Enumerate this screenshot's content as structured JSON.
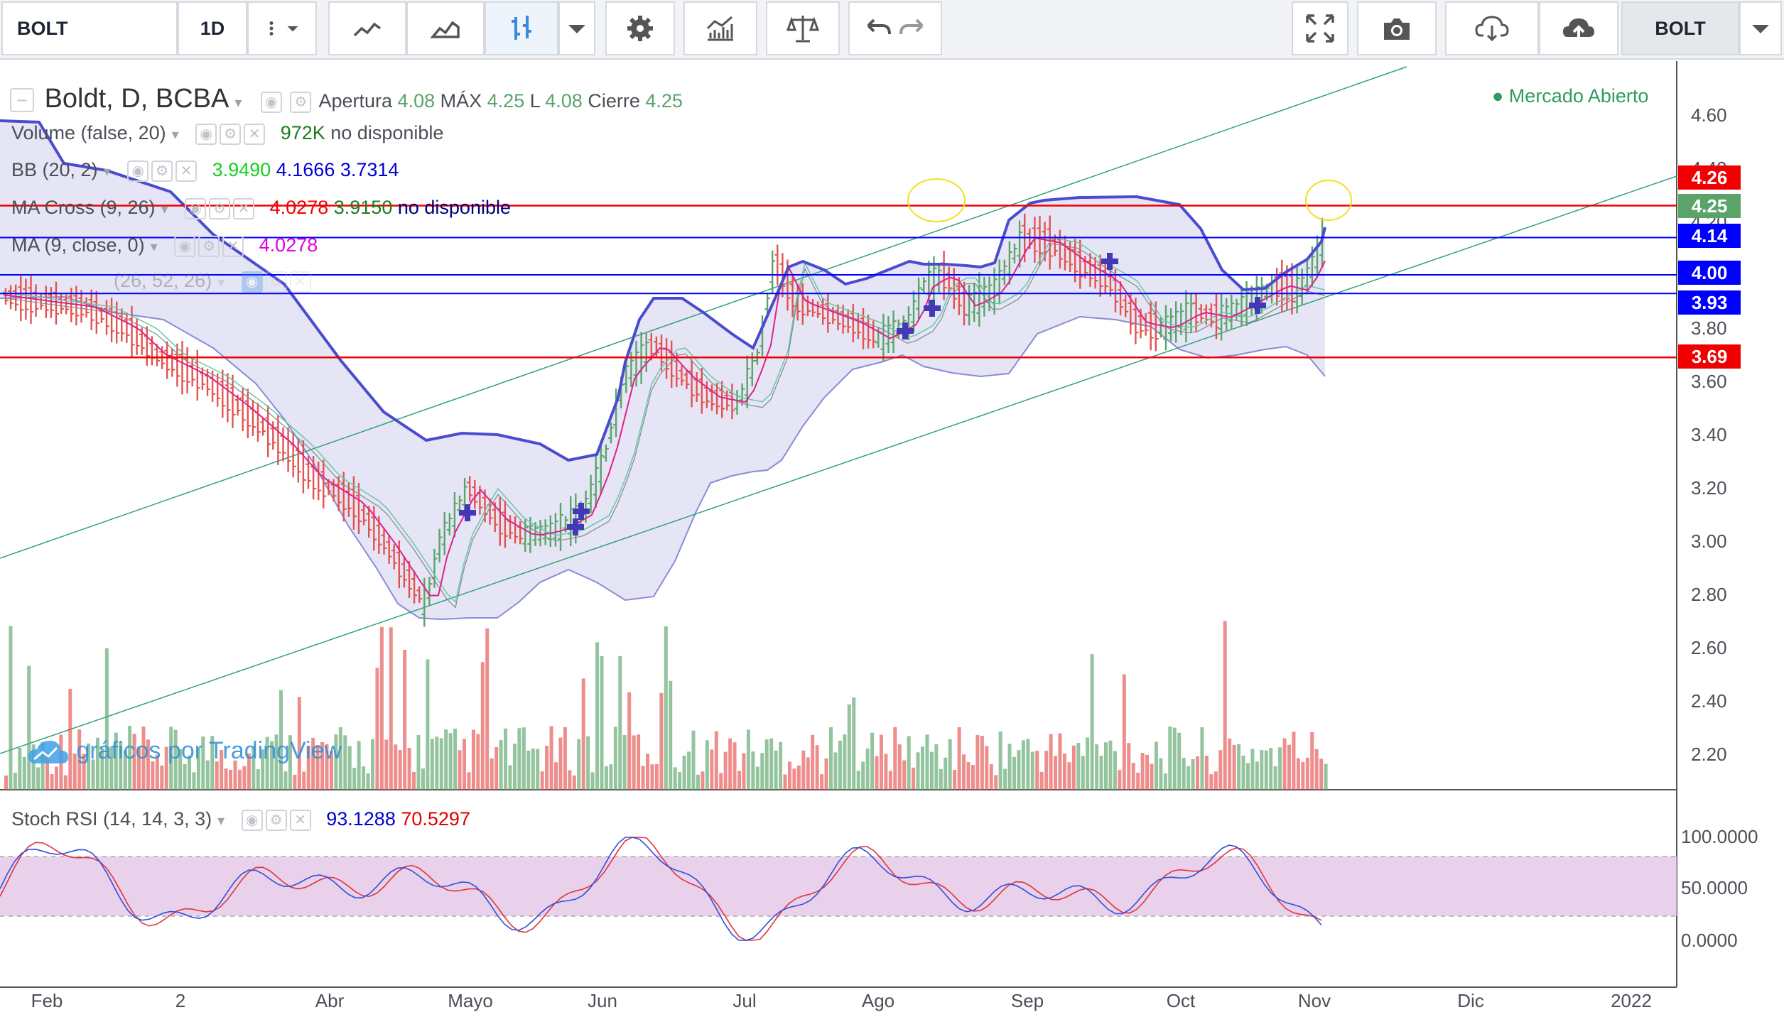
{
  "toolbar": {
    "symbol": "BOLT",
    "interval": "1D",
    "symbol_right": "BOLT"
  },
  "header": {
    "title": "Boldt, D, BCBA",
    "open_label": "Apertura",
    "open_value": "4.08",
    "high_label": "MÁX",
    "high_value": "4.25",
    "low_label": "L",
    "low_value": "4.08",
    "close_label": "Cierre",
    "close_value": "4.25",
    "market_status": "● Mercado Abierto"
  },
  "indicators": {
    "volume": {
      "name": "Volume (false, 20)",
      "value": "972K",
      "extra": "no disponible"
    },
    "bb": {
      "name": "BB (20, 2)",
      "basis": "3.9490",
      "upper": "4.1666",
      "lower": "3.7314"
    },
    "macross": {
      "name": "MA Cross (9, 26)",
      "fast": "4.0278",
      "slow": "3.9150",
      "extra": "no disponible"
    },
    "ma": {
      "name": "MA (9, close, 0)",
      "value": "4.0278"
    },
    "hidden": {
      "name": "(26, 52, 26)"
    },
    "stoch": {
      "name": "Stoch RSI (14, 14, 3, 3)",
      "k": "93.1288",
      "d": "70.5297"
    }
  },
  "price_axis": [
    "4.60",
    "4.40",
    "4.20",
    "4.00",
    "3.80",
    "3.60",
    "3.40",
    "3.20",
    "3.00",
    "2.80",
    "2.60",
    "2.40",
    "2.20"
  ],
  "price_labels": [
    {
      "text": "4.26",
      "color": "#f00000"
    },
    {
      "text": "4.25",
      "color": "#5aa46a"
    },
    {
      "text": "4.14",
      "color": "#0000ff"
    },
    {
      "text": "4.00",
      "color": "#0000ff"
    },
    {
      "text": "3.93",
      "color": "#0000ff"
    },
    {
      "text": "3.69",
      "color": "#f00000"
    }
  ],
  "stoch_axis": [
    "100.0000",
    "50.0000",
    "0.0000"
  ],
  "months": [
    "Feb",
    "2",
    "Abr",
    "Mayo",
    "Jun",
    "Jul",
    "Ago",
    "Sep",
    "Oct",
    "Nov",
    "Dic",
    "2022"
  ],
  "watermark": "gráficos por TradingView",
  "colors": {
    "up": "#5aa46a",
    "down": "#e3524f",
    "bb": "#4a4cd0",
    "ma": "#e0208a",
    "rsi_k": "#2e4fdb",
    "rsi_d": "#e0353a"
  },
  "icons": [
    "chart-type-icon",
    "indicators-icon",
    "settings-icon",
    "compare-icon",
    "undo-icon",
    "redo-icon",
    "fullscreen-icon",
    "camera-icon",
    "cloud-download-icon",
    "cloud-upload-icon"
  ]
}
